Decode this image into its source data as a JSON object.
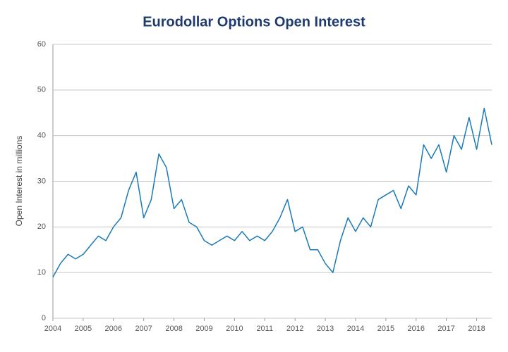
{
  "chart_data": {
    "type": "line",
    "title": "Eurodollar Options Open Interest",
    "y_label": "Open Interest in millions",
    "x": [
      2004,
      2004.25,
      2004.5,
      2004.75,
      2005,
      2005.25,
      2005.5,
      2005.75,
      2006,
      2006.25,
      2006.5,
      2006.75,
      2007,
      2007.25,
      2007.5,
      2007.75,
      2008,
      2008.25,
      2008.5,
      2008.75,
      2009,
      2009.25,
      2009.5,
      2009.75,
      2010,
      2010.25,
      2010.5,
      2010.75,
      2011,
      2011.25,
      2011.5,
      2011.75,
      2012,
      2012.25,
      2012.5,
      2012.75,
      2013,
      2013.25,
      2013.5,
      2013.75,
      2014,
      2014.25,
      2014.5,
      2014.75,
      2015,
      2015.25,
      2015.5,
      2015.75,
      2016,
      2016.25,
      2016.5,
      2016.75,
      2017,
      2017.25,
      2017.5,
      2017.75,
      2018,
      2018.25,
      2018.5
    ],
    "series": [
      {
        "name": "Open Interest",
        "color": "#1a7ab8",
        "values": [
          9,
          12,
          14,
          13,
          14,
          16,
          18,
          17,
          20,
          22,
          28,
          32,
          22,
          26,
          36,
          33,
          24,
          26,
          21,
          20,
          17,
          16,
          17,
          18,
          17,
          19,
          17,
          18,
          17,
          19,
          22,
          26,
          19,
          20,
          15,
          15,
          12,
          10,
          17,
          22,
          19,
          22,
          20,
          26,
          27,
          28,
          24,
          29,
          27,
          38,
          35,
          38,
          32,
          40,
          37,
          44,
          37,
          46,
          38
        ]
      }
    ],
    "xlim": [
      2004,
      2018.5
    ],
    "xticks": [
      2004,
      2005,
      2006,
      2007,
      2008,
      2009,
      2010,
      2011,
      2012,
      2013,
      2014,
      2015,
      2016,
      2017,
      2018
    ],
    "ylim": [
      0,
      60
    ],
    "yticks": [
      0,
      10,
      20,
      30,
      40,
      50,
      60
    ],
    "grid": true
  }
}
